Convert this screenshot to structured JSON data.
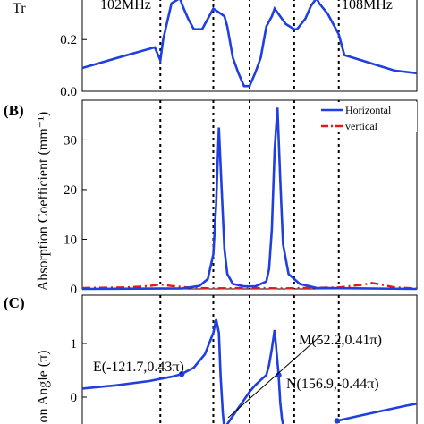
{
  "chart_data": [
    {
      "panel_label": "",
      "type": "line",
      "ylabel": "Tr",
      "yticks": [
        "0.0",
        "0.2"
      ],
      "ylim": [
        0,
        0.36
      ],
      "xlim": [
        -300,
        300
      ],
      "annotations": [
        "102MHz",
        "108MHz"
      ],
      "series": [
        {
          "color": "#1f3fe0",
          "x": [
            -300,
            -220,
            -170,
            -160,
            -155,
            -140,
            -125,
            -120,
            -110,
            -100,
            -85,
            -80,
            -65,
            -45,
            -40,
            -30,
            -20,
            -10,
            0,
            10,
            20,
            30,
            40,
            45,
            65,
            80,
            85,
            100,
            110,
            120,
            125,
            140,
            160,
            170,
            200,
            230,
            260,
            300
          ],
          "y": [
            0.09,
            0.14,
            0.17,
            0.12,
            0.2,
            0.34,
            0.36,
            0.33,
            0.28,
            0.24,
            0.24,
            0.26,
            0.32,
            0.29,
            0.25,
            0.13,
            0.07,
            0.02,
            0.02,
            0.07,
            0.13,
            0.25,
            0.29,
            0.32,
            0.26,
            0.24,
            0.24,
            0.28,
            0.33,
            0.36,
            0.34,
            0.3,
            0.22,
            0.14,
            0.12,
            0.1,
            0.08,
            0.07
          ]
        }
      ],
      "vlines_x": [
        -160,
        -65,
        0,
        80,
        160
      ]
    },
    {
      "panel_label": "(B)",
      "type": "line",
      "ylabel": "Absorption Coefficient (mm⁻¹)",
      "yticks": [
        "0",
        "10",
        "20",
        "30"
      ],
      "ylim": [
        0,
        38
      ],
      "xlim": [
        -300,
        300
      ],
      "legend": {
        "position": "top-right",
        "entries": [
          "Horizontal",
          "vertical"
        ]
      },
      "series": [
        {
          "name": "Horizontal",
          "color": "#1f3fe0",
          "style": "solid",
          "x": [
            -300,
            -120,
            -90,
            -75,
            -65,
            -60,
            -55,
            -50,
            -45,
            -40,
            -30,
            -10,
            10,
            30,
            35,
            40,
            45,
            50,
            55,
            60,
            70,
            90,
            120,
            300
          ],
          "y": [
            0,
            0.1,
            0.6,
            2,
            7,
            17,
            32.5,
            20,
            8,
            3,
            1,
            0.5,
            0.5,
            1.5,
            4,
            12,
            28,
            36.5,
            22,
            9,
            3,
            1,
            0.2,
            0
          ]
        },
        {
          "name": "vertical",
          "color": "#e01a1a",
          "style": "dashdot",
          "x": [
            -300,
            -220,
            -180,
            -160,
            -140,
            -100,
            -60,
            0,
            60,
            100,
            160,
            200,
            220,
            240,
            260,
            300
          ],
          "y": [
            0.2,
            0.3,
            0.6,
            0.9,
            0.6,
            0.2,
            0.1,
            0.2,
            0.1,
            0.2,
            0.3,
            0.8,
            1.2,
            0.8,
            0.3,
            0.1
          ]
        }
      ],
      "vlines_x": [
        -160,
        -65,
        0,
        80,
        160
      ]
    },
    {
      "panel_label": "(C)",
      "type": "line",
      "ylabel": "on Angle (π)",
      "yticks": [
        "0",
        "1"
      ],
      "ylim": [
        -0.6,
        1.9
      ],
      "xlim": [
        -300,
        300
      ],
      "annotations": [
        "E(-121.7,0.43π)",
        "M(52.2,0.41π)",
        "N(156.9,-0.44π)"
      ],
      "series": [
        {
          "color": "#1f3fe0",
          "x": [
            -300,
            -240,
            -180,
            -140,
            -121.7,
            -100,
            -80,
            -65,
            -60,
            -55,
            -52,
            -48,
            -45,
            -40,
            -30,
            -20,
            -10,
            0,
            10,
            20,
            30,
            35,
            40,
            45,
            52.2,
            55,
            58,
            62
          ],
          "y": [
            0.16,
            0.22,
            0.3,
            0.38,
            0.43,
            0.55,
            0.8,
            1.2,
            1.45,
            1.2,
            0.4,
            -0.3,
            -0.6,
            -0.5,
            -0.35,
            -0.2,
            -0.05,
            0.1,
            0.22,
            0.32,
            0.41,
            0.6,
            0.9,
            1.25,
            0.41,
            -0.1,
            -0.4,
            -0.6
          ]
        },
        {
          "color": "#1f3fe0",
          "x": [
            156.9,
            200,
            240,
            280,
            300
          ],
          "y": [
            -0.44,
            -0.34,
            -0.25,
            -0.16,
            -0.12
          ]
        }
      ],
      "markers": [
        {
          "label": "E",
          "x": -121.7,
          "y": 0.43
        },
        {
          "label": "M",
          "x": 52.2,
          "y": 0.41
        },
        {
          "label": "N",
          "x": 156.9,
          "y": -0.44
        }
      ],
      "vlines_x": [
        -160,
        -65,
        0,
        80,
        160
      ]
    }
  ]
}
